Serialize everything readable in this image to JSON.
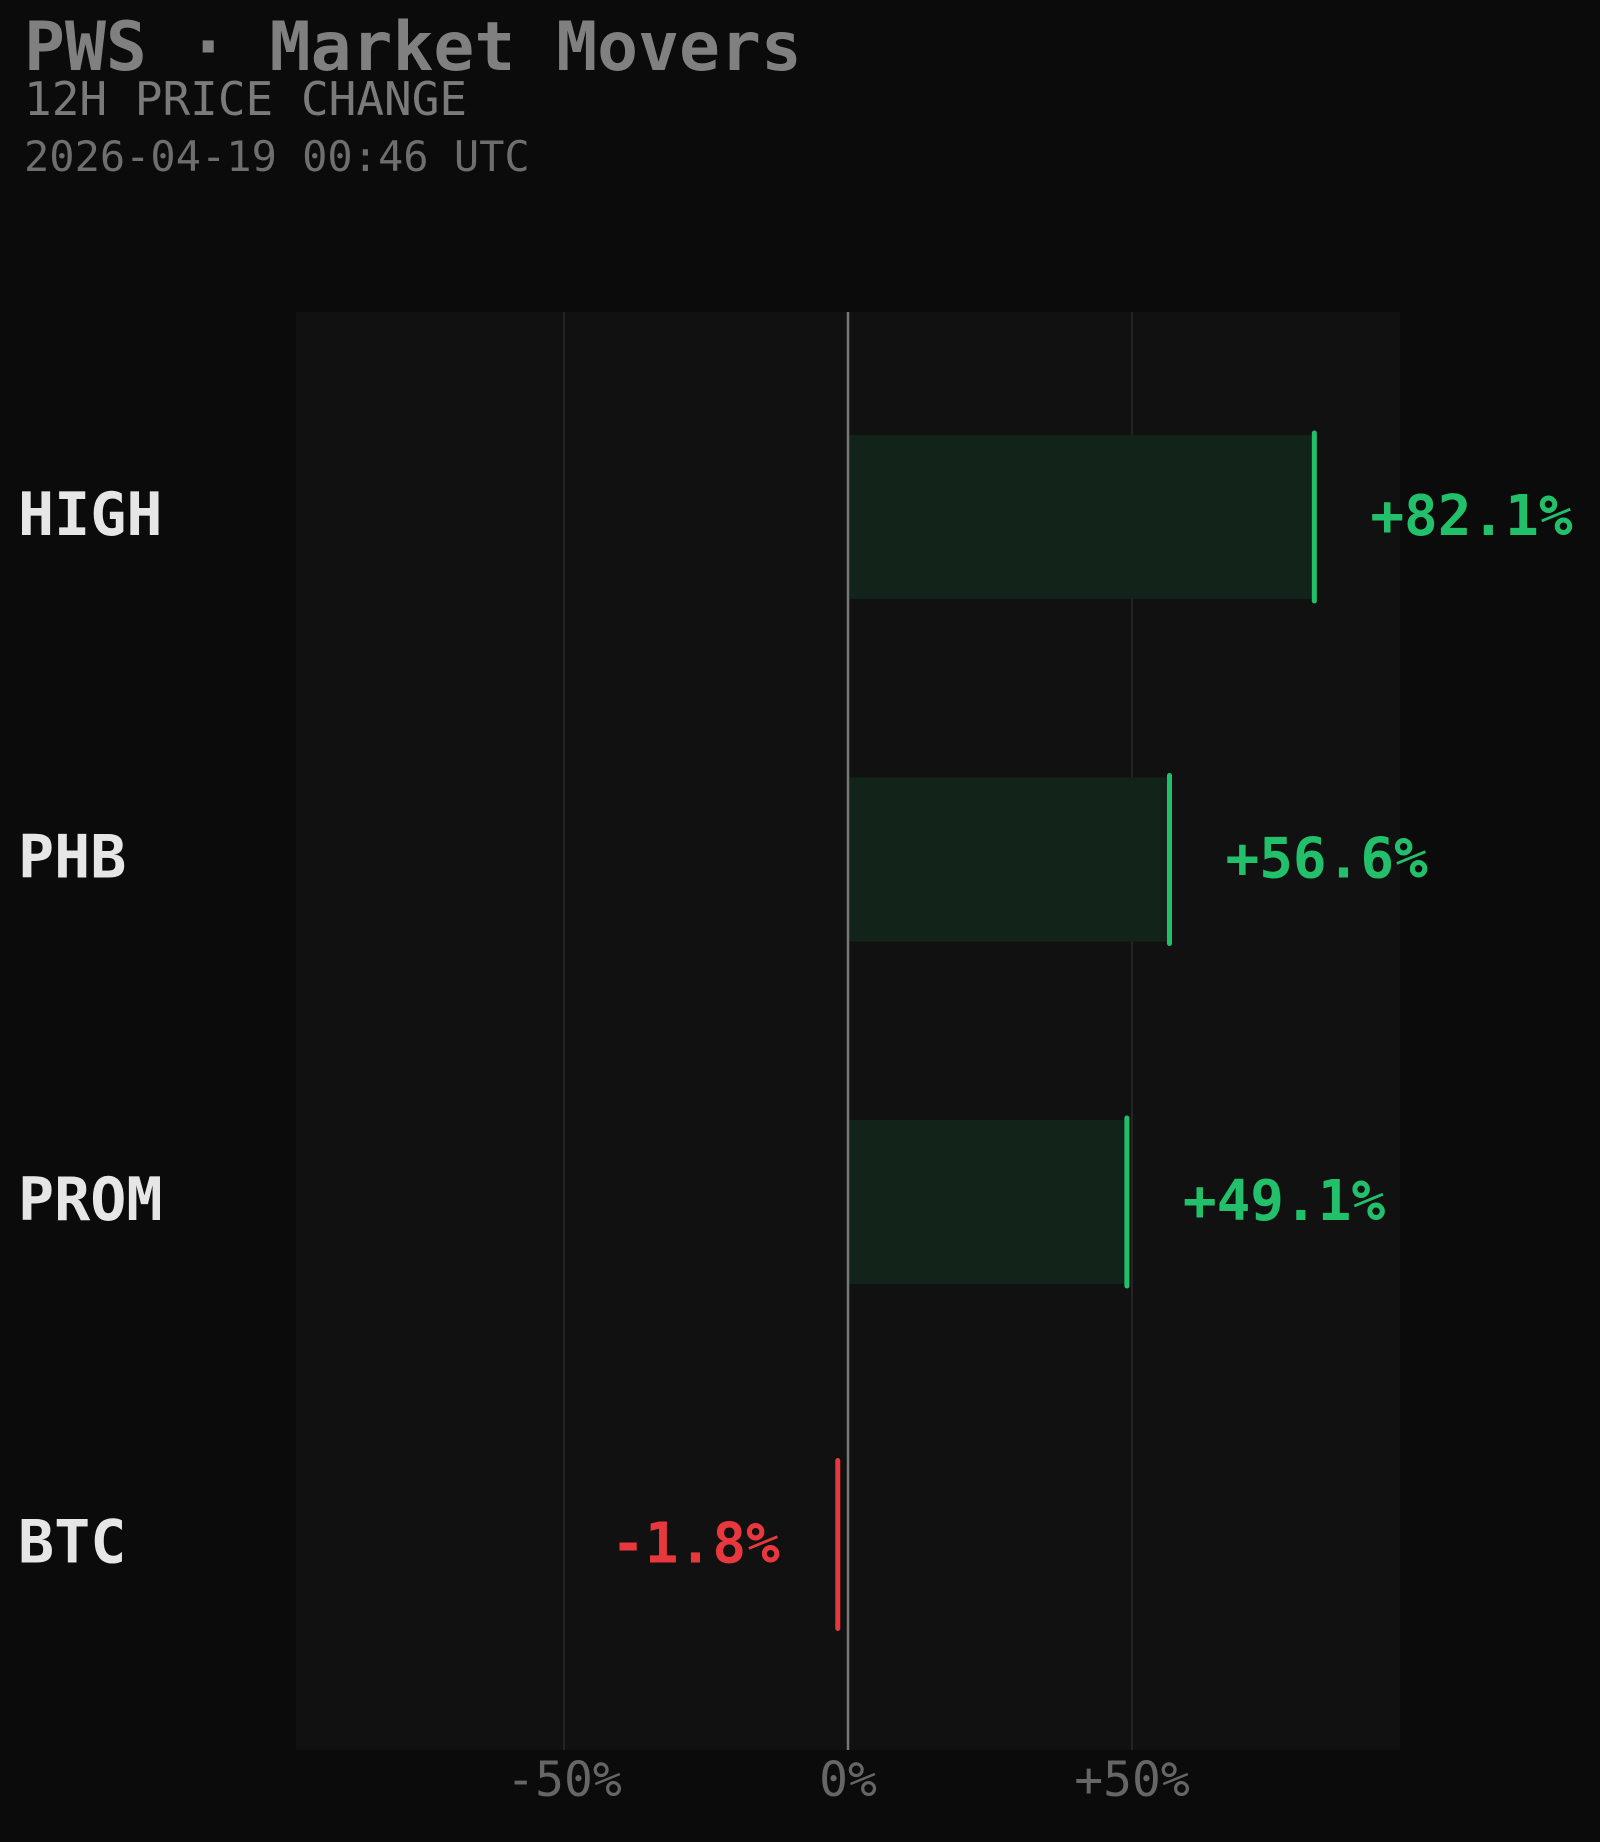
{
  "header": {
    "title": "PWS · Market Movers",
    "subtitle": "12H PRICE CHANGE",
    "timestamp": "2026-04-19 00:46 UTC"
  },
  "colors": {
    "background": "#0b0b0b",
    "plot_background": "#111111",
    "positive": "#22c06a",
    "positive_fill": "#12231a",
    "negative": "#e8383d",
    "label": "#e6e6e6",
    "axis_text": "#666666",
    "grid": "#2a2a2a",
    "zero_line": "#777777"
  },
  "chart_data": {
    "type": "bar",
    "orientation": "horizontal",
    "categories": [
      "HIGH",
      "PHB",
      "PROM",
      "BTC"
    ],
    "values": [
      82.1,
      56.6,
      49.1,
      -1.8
    ],
    "value_labels": [
      "+82.1%",
      "+56.6%",
      "+49.1%",
      "-1.8%"
    ],
    "xlim": [
      -97,
      97
    ],
    "xticks": [
      -50,
      0,
      50
    ],
    "xtick_labels": [
      "-50%",
      "0%",
      "+50%"
    ],
    "grid": true
  }
}
